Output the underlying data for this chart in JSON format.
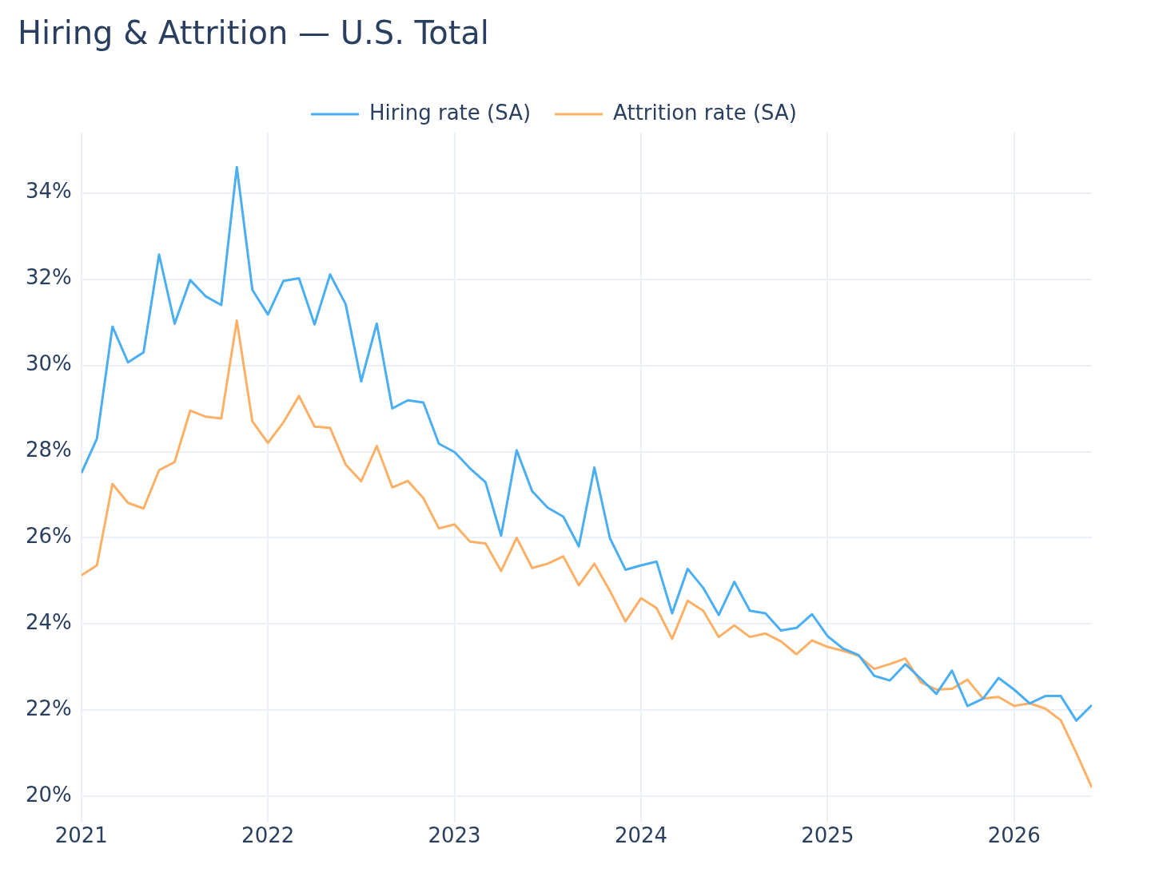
{
  "chart_data": {
    "type": "line",
    "title": "Hiring & Attrition — U.S. Total",
    "x": [
      "2021-01",
      "2021-02",
      "2021-03",
      "2021-04",
      "2021-05",
      "2021-06",
      "2021-07",
      "2021-08",
      "2021-09",
      "2021-10",
      "2021-11",
      "2021-12",
      "2022-01",
      "2022-02",
      "2022-03",
      "2022-04",
      "2022-05",
      "2022-06",
      "2022-07",
      "2022-08",
      "2022-09",
      "2022-10",
      "2022-11",
      "2022-12",
      "2023-01",
      "2023-02",
      "2023-03",
      "2023-04",
      "2023-05",
      "2023-06",
      "2023-07",
      "2023-08",
      "2023-09",
      "2023-10",
      "2023-11",
      "2023-12",
      "2024-01",
      "2024-02",
      "2024-03",
      "2024-04",
      "2024-05",
      "2024-06",
      "2024-07",
      "2024-08",
      "2024-09",
      "2024-10",
      "2024-11",
      "2024-12",
      "2025-01",
      "2025-02",
      "2025-03",
      "2025-04",
      "2025-05",
      "2025-06",
      "2025-07",
      "2025-08",
      "2025-09",
      "2025-10",
      "2025-11",
      "2025-12",
      "2026-01",
      "2026-02",
      "2026-03",
      "2026-04",
      "2026-05",
      "2026-06"
    ],
    "series": [
      {
        "name": "Hiring rate (SA)",
        "color": "#4aaef3",
        "values": [
          27.5,
          28.3,
          30.9,
          30.07,
          30.3,
          32.57,
          30.97,
          31.98,
          31.6,
          31.4,
          34.6,
          31.75,
          31.18,
          31.96,
          32.02,
          30.95,
          32.11,
          31.42,
          29.63,
          30.97,
          29.0,
          29.19,
          29.14,
          28.18,
          27.99,
          27.61,
          27.29,
          26.05,
          28.03,
          27.08,
          26.7,
          26.49,
          25.8,
          27.63,
          25.99,
          25.26,
          25.36,
          25.45,
          24.25,
          25.28,
          24.84,
          24.21,
          24.98,
          24.31,
          24.25,
          23.85,
          23.91,
          24.23,
          23.72,
          23.43,
          23.28,
          22.8,
          22.69,
          23.07,
          22.73,
          22.38,
          22.92,
          22.1,
          22.27,
          22.75,
          22.48,
          22.16,
          22.33,
          22.33,
          21.76,
          22.12
        ]
      },
      {
        "name": "Attrition rate (SA)",
        "color": "#fcb065",
        "values": [
          25.13,
          25.36,
          27.25,
          26.81,
          26.68,
          27.57,
          27.76,
          28.95,
          28.81,
          28.77,
          31.04,
          28.7,
          28.2,
          28.68,
          29.29,
          28.58,
          28.55,
          27.7,
          27.31,
          28.13,
          27.17,
          27.32,
          26.92,
          26.22,
          26.31,
          25.91,
          25.87,
          25.23,
          26.0,
          25.3,
          25.4,
          25.57,
          24.9,
          25.4,
          24.77,
          24.06,
          24.6,
          24.37,
          23.66,
          24.54,
          24.31,
          23.7,
          23.97,
          23.7,
          23.78,
          23.6,
          23.3,
          23.62,
          23.47,
          23.38,
          23.26,
          22.96,
          23.07,
          23.2,
          22.65,
          22.48,
          22.5,
          22.71,
          22.27,
          22.31,
          22.1,
          22.16,
          22.04,
          21.77,
          21.01,
          20.21
        ]
      }
    ],
    "xlim": [
      "2021-01",
      "2026-06"
    ],
    "xticks": [
      "2021",
      "2022",
      "2023",
      "2024",
      "2025",
      "2026"
    ],
    "ylim": [
      19.4,
      35.4
    ],
    "yticks": [
      {
        "value": 20,
        "label": "20%"
      },
      {
        "value": 22,
        "label": "22%"
      },
      {
        "value": 24,
        "label": "24%"
      },
      {
        "value": 26,
        "label": "26%"
      },
      {
        "value": 28,
        "label": "28%"
      },
      {
        "value": 30,
        "label": "30%"
      },
      {
        "value": 32,
        "label": "32%"
      },
      {
        "value": 34,
        "label": "34%"
      }
    ],
    "grid": true,
    "legend": "top",
    "marker": "none",
    "line_style": "solid"
  }
}
